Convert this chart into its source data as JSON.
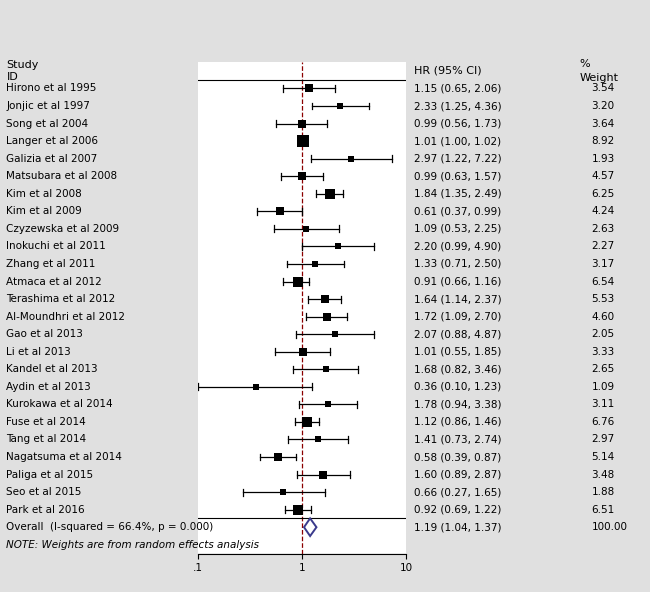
{
  "studies": [
    {
      "label": "Hirono et al 1995",
      "hr": 1.15,
      "lo": 0.65,
      "hi": 2.06,
      "weight": 3.54
    },
    {
      "label": "Jonjic et al 1997",
      "hr": 2.33,
      "lo": 1.25,
      "hi": 4.36,
      "weight": 3.2
    },
    {
      "label": "Song et al 2004",
      "hr": 0.99,
      "lo": 0.56,
      "hi": 1.73,
      "weight": 3.64
    },
    {
      "label": "Langer et al 2006",
      "hr": 1.01,
      "lo": 1.0,
      "hi": 1.02,
      "weight": 8.92
    },
    {
      "label": "Galizia et al 2007",
      "hr": 2.97,
      "lo": 1.22,
      "hi": 7.22,
      "weight": 1.93
    },
    {
      "label": "Matsubara et al 2008",
      "hr": 0.99,
      "lo": 0.63,
      "hi": 1.57,
      "weight": 4.57
    },
    {
      "label": "Kim et al 2008",
      "hr": 1.84,
      "lo": 1.35,
      "hi": 2.49,
      "weight": 6.25
    },
    {
      "label": "Kim et al 2009",
      "hr": 0.61,
      "lo": 0.37,
      "hi": 0.99,
      "weight": 4.24
    },
    {
      "label": "Czyzewska et al 2009",
      "hr": 1.09,
      "lo": 0.53,
      "hi": 2.25,
      "weight": 2.63
    },
    {
      "label": "Inokuchi et al 2011",
      "hr": 2.2,
      "lo": 0.99,
      "hi": 4.9,
      "weight": 2.27
    },
    {
      "label": "Zhang et al 2011",
      "hr": 1.33,
      "lo": 0.71,
      "hi": 2.5,
      "weight": 3.17
    },
    {
      "label": "Atmaca et al 2012",
      "hr": 0.91,
      "lo": 0.66,
      "hi": 1.16,
      "weight": 6.54
    },
    {
      "label": "Terashima et al 2012",
      "hr": 1.64,
      "lo": 1.14,
      "hi": 2.37,
      "weight": 5.53
    },
    {
      "label": "Al-Moundhri et al 2012",
      "hr": 1.72,
      "lo": 1.09,
      "hi": 2.7,
      "weight": 4.6
    },
    {
      "label": "Gao et al 2013",
      "hr": 2.07,
      "lo": 0.88,
      "hi": 4.87,
      "weight": 2.05
    },
    {
      "label": "Li et al 2013",
      "hr": 1.01,
      "lo": 0.55,
      "hi": 1.85,
      "weight": 3.33
    },
    {
      "label": "Kandel et al 2013",
      "hr": 1.68,
      "lo": 0.82,
      "hi": 3.46,
      "weight": 2.65
    },
    {
      "label": "Aydin et al 2013",
      "hr": 0.36,
      "lo": 0.1,
      "hi": 1.23,
      "weight": 1.09
    },
    {
      "label": "Kurokawa et al 2014",
      "hr": 1.78,
      "lo": 0.94,
      "hi": 3.38,
      "weight": 3.11
    },
    {
      "label": "Fuse et al 2014",
      "hr": 1.12,
      "lo": 0.86,
      "hi": 1.46,
      "weight": 6.76
    },
    {
      "label": "Tang et al 2014",
      "hr": 1.41,
      "lo": 0.73,
      "hi": 2.74,
      "weight": 2.97
    },
    {
      "label": "Nagatsuma et al 2014",
      "hr": 0.58,
      "lo": 0.39,
      "hi": 0.87,
      "weight": 5.14
    },
    {
      "label": "Paliga et al 2015",
      "hr": 1.6,
      "lo": 0.89,
      "hi": 2.87,
      "weight": 3.48
    },
    {
      "label": "Seo et al 2015",
      "hr": 0.66,
      "lo": 0.27,
      "hi": 1.65,
      "weight": 1.88
    },
    {
      "label": "Park et al 2016",
      "hr": 0.92,
      "lo": 0.69,
      "hi": 1.22,
      "weight": 6.51
    }
  ],
  "overall": {
    "hr": 1.19,
    "lo": 1.04,
    "hi": 1.37,
    "label": "Overall  (I-squared = 66.4%, p = 0.000)",
    "weight": 100.0
  },
  "note": "NOTE: Weights are from random effects analysis",
  "xmin": 0.1,
  "xmax": 10.0,
  "xticks": [
    0.1,
    1,
    10
  ],
  "xtick_labels": [
    ".1",
    "1",
    "10"
  ],
  "bg_color": "#e0e0e0",
  "plot_bg_color": "#ffffff",
  "diamond_color": "#3a3a8c",
  "ci_line_color": "#000000",
  "dashed_color": "#8b0000",
  "box_color": "#000000",
  "text_color": "#000000",
  "fontsize": 7.5,
  "header_fontsize": 8.0
}
